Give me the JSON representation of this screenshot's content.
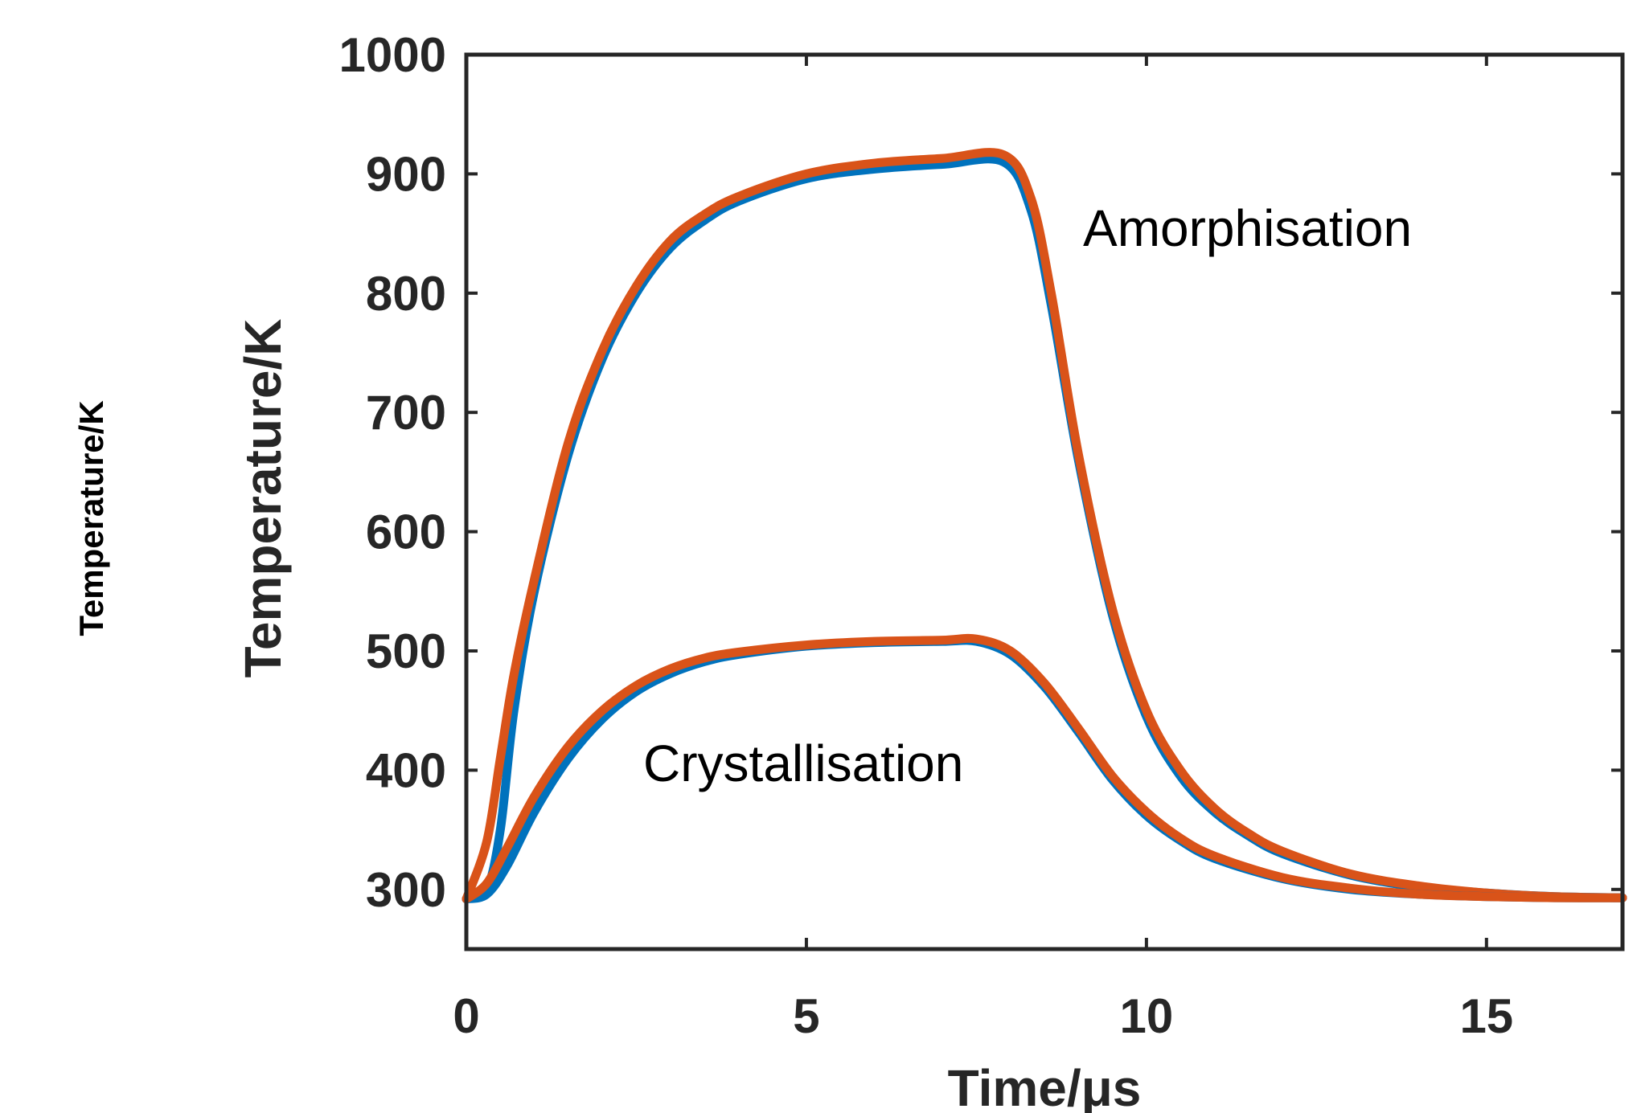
{
  "chart_data": {
    "type": "line",
    "title": "",
    "xlabel": "Time/μs",
    "ylabel": "Temperature/K",
    "side_label": "Temperature/K",
    "xlim": [
      0,
      17
    ],
    "ylim": [
      250,
      1000
    ],
    "x_ticks": [
      0,
      5,
      10,
      15
    ],
    "y_ticks": [
      300,
      400,
      500,
      600,
      700,
      800,
      900,
      1000
    ],
    "grid": false,
    "annotations": [
      "Amorphisation",
      "Crystallisation"
    ],
    "colors": {
      "series_a": "#0072BD",
      "series_b": "#D95319",
      "axes": "#262626"
    },
    "series": [
      {
        "color": "#0072BD",
        "x": [
          0,
          0.3,
          0.5,
          0.7,
          1.0,
          1.5,
          2.0,
          2.5,
          3.0,
          3.5,
          4.0,
          5.0,
          6.0,
          7.0,
          7.9,
          8.3,
          8.6,
          9.0,
          9.5,
          10.0,
          10.5,
          11.0,
          11.5,
          12.0,
          13.0,
          14.0,
          15.0,
          16.0,
          17.0
        ],
        "y": [
          292,
          300,
          350,
          450,
          550,
          665,
          745,
          800,
          838,
          861,
          877,
          896,
          904,
          908,
          910,
          870,
          790,
          660,
          530,
          445,
          395,
          365,
          345,
          330,
          312,
          302,
          297,
          294,
          293
        ]
      },
      {
        "color": "#D95319",
        "x": [
          0,
          0.3,
          0.5,
          0.7,
          1.0,
          1.5,
          2.0,
          2.5,
          3.0,
          3.5,
          4.0,
          5.0,
          6.0,
          7.0,
          7.9,
          8.3,
          8.6,
          9.0,
          9.5,
          10.0,
          10.5,
          11.0,
          11.5,
          12.0,
          13.0,
          14.0,
          15.0,
          16.0,
          17.0
        ],
        "y": [
          292,
          340,
          410,
          480,
          560,
          675,
          752,
          806,
          844,
          866,
          881,
          900,
          909,
          913,
          916,
          880,
          800,
          665,
          535,
          450,
          400,
          368,
          347,
          332,
          313,
          303,
          297,
          294,
          293
        ]
      },
      {
        "color": "#0072BD",
        "x": [
          0,
          0.3,
          0.6,
          1.0,
          1.5,
          2.0,
          2.5,
          3.0,
          3.5,
          4.0,
          5.0,
          6.0,
          7.0,
          7.5,
          8.0,
          8.5,
          9.0,
          9.5,
          10.0,
          10.5,
          11.0,
          12.0,
          13.0,
          14.0,
          15.0,
          16.0,
          17.0
        ],
        "y": [
          292,
          296,
          320,
          365,
          410,
          443,
          466,
          481,
          491,
          497,
          504,
          507,
          508,
          508,
          497,
          470,
          432,
          392,
          362,
          341,
          326,
          309,
          300,
          296,
          294,
          293,
          293
        ]
      },
      {
        "color": "#D95319",
        "x": [
          0,
          0.3,
          0.6,
          1.0,
          1.5,
          2.0,
          2.5,
          3.0,
          3.5,
          4.0,
          5.0,
          6.0,
          7.0,
          7.5,
          8.0,
          8.5,
          9.0,
          9.5,
          10.0,
          10.5,
          11.0,
          12.0,
          13.0,
          14.0,
          15.0,
          16.0,
          17.0
        ],
        "y": [
          292,
          305,
          335,
          378,
          420,
          450,
          471,
          485,
          494,
          499,
          505,
          508,
          509,
          510,
          500,
          473,
          435,
          395,
          365,
          343,
          328,
          310,
          301,
          296,
          294,
          293,
          293
        ]
      }
    ]
  }
}
